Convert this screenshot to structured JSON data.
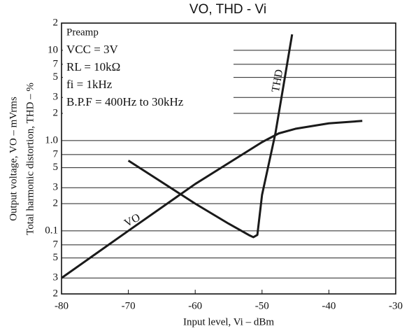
{
  "chart_data": {
    "type": "line",
    "title": "VO, THD  -  Vi",
    "xlabel": "Input level, Vi – dBm",
    "ylabel": [
      "Output voltage, VO – mVrms",
      "Total harmonic distortion, THD – %"
    ],
    "annotations": [
      "Preamp",
      "VCC = 3V",
      "RL = 10kΩ",
      "fi = 1kHz",
      "B.P.F = 400Hz to 30kHz"
    ],
    "log_y": true,
    "grid": "y",
    "xlim": [
      -80,
      -30
    ],
    "xticks": [
      -80,
      -70,
      -60,
      -50,
      -40,
      -30
    ],
    "ylim": [
      0.02,
      20
    ],
    "yticks": [
      {
        "value": 0.02,
        "label": "2"
      },
      {
        "value": 0.03,
        "label": "3"
      },
      {
        "value": 0.05,
        "label": "5"
      },
      {
        "value": 0.07,
        "label": "7"
      },
      0.1,
      {
        "value": 0.2,
        "label": "2"
      },
      {
        "value": 0.3,
        "label": "3"
      },
      {
        "value": 0.5,
        "label": "5"
      },
      {
        "value": 0.7,
        "label": "7"
      },
      {
        "value": 1,
        "label": "1.0"
      },
      2,
      3,
      5,
      7,
      10,
      {
        "value": 20,
        "label": "2"
      }
    ],
    "series": [
      {
        "name": "VO",
        "color": "#1a1a1a",
        "x": [
          -80,
          -70,
          -60,
          -50,
          -47.5,
          -45,
          -40,
          -35
        ],
        "values": [
          0.03,
          0.1,
          0.33,
          0.96,
          1.2,
          1.35,
          1.55,
          1.65
        ]
      },
      {
        "name": "THD",
        "color": "#1a1a1a",
        "x": [
          -70,
          -60,
          -55,
          -52,
          -51.3,
          -50.7,
          -50,
          -48,
          -45.5
        ],
        "values": [
          0.6,
          0.2,
          0.12,
          0.09,
          0.085,
          0.09,
          0.25,
          1.2,
          15
        ]
      }
    ]
  }
}
